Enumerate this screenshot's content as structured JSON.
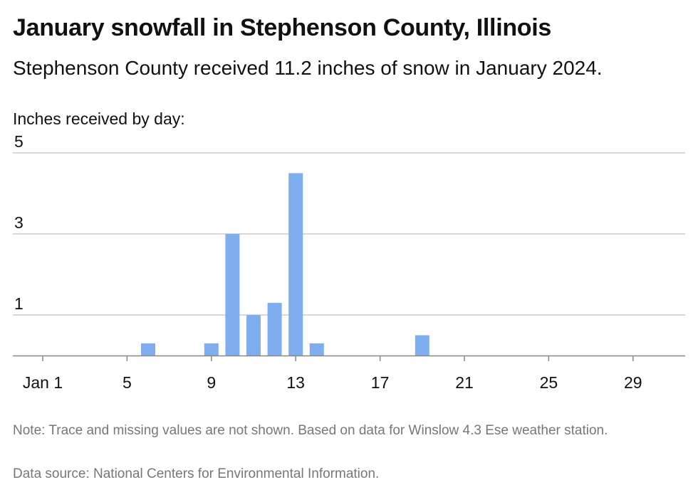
{
  "chart_data": {
    "type": "bar",
    "title": "January snowfall in Stephenson County, Illinois",
    "subtitle": "Stephenson County received 11.2 inches of snow in January 2024.",
    "ylabel": "Inches received by day:",
    "xlabel": "",
    "x": [
      1,
      2,
      3,
      4,
      5,
      6,
      7,
      8,
      9,
      10,
      11,
      12,
      13,
      14,
      15,
      16,
      17,
      18,
      19,
      20,
      21,
      22,
      23,
      24,
      25,
      26,
      27,
      28,
      29,
      30,
      31
    ],
    "values": [
      0,
      0,
      0,
      0,
      0,
      0.3,
      0,
      0,
      0.3,
      3,
      1,
      1.3,
      4.5,
      0.3,
      0,
      0,
      0,
      0,
      0.5,
      0,
      0,
      0,
      0,
      0,
      0,
      0,
      0,
      0,
      0,
      0,
      0
    ],
    "xticks": [
      1,
      5,
      9,
      13,
      17,
      21,
      25,
      29
    ],
    "xtick_labels": [
      "Jan 1",
      "5",
      "9",
      "13",
      "17",
      "21",
      "25",
      "29"
    ],
    "yticks": [
      1,
      3,
      5
    ],
    "ylim": [
      0,
      5
    ],
    "grid": true,
    "bar_color": "#7eaef0",
    "grid_color": "#cccccc",
    "axis_color": "#888888"
  },
  "note": "Note: Trace and missing values are not shown. Based on data for Winslow 4.3 Ese weather station.",
  "source": "Data source: National Centers for Environmental Information."
}
